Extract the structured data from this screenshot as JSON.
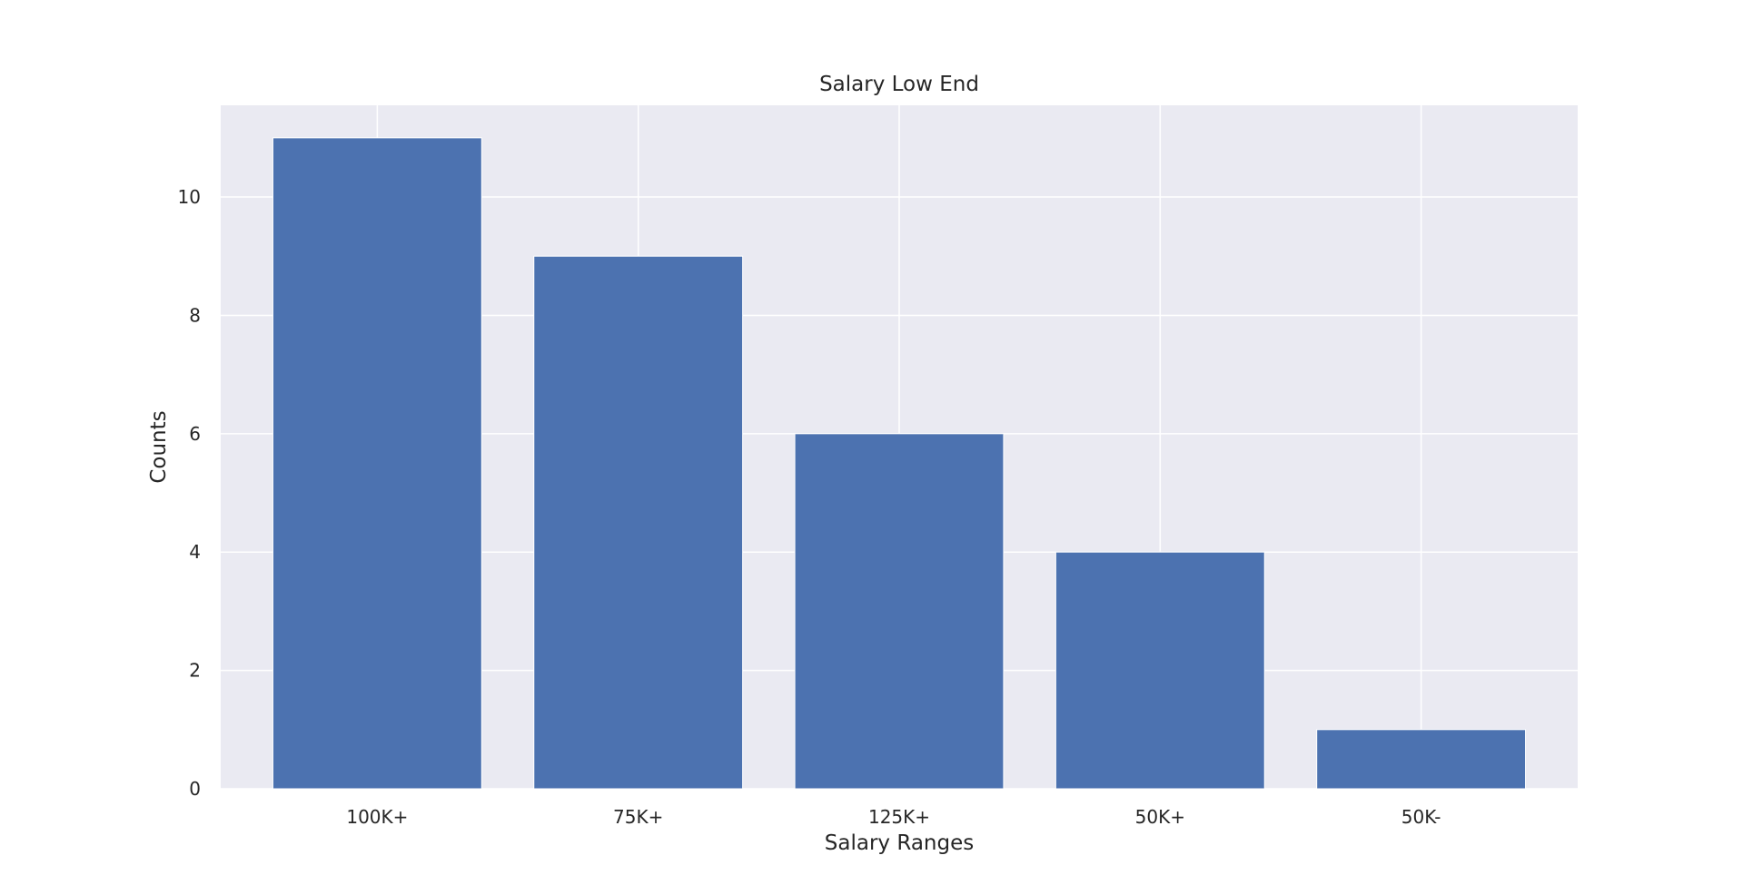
{
  "chart_data": {
    "type": "bar",
    "title": "Salary Low End",
    "xlabel": "Salary Ranges",
    "ylabel": "Counts",
    "categories": [
      "100K+",
      "75K+",
      "125K+",
      "50K+",
      "50K-"
    ],
    "values": [
      11,
      9,
      6,
      4,
      1
    ],
    "ylim": [
      0,
      11.55
    ],
    "yticks": [
      0,
      2,
      4,
      6,
      8,
      10
    ],
    "grid": true,
    "colors": {
      "bar": "#4c72b0",
      "plot_background": "#eaeaf2",
      "grid": "#ffffff",
      "text": "#262626"
    }
  }
}
